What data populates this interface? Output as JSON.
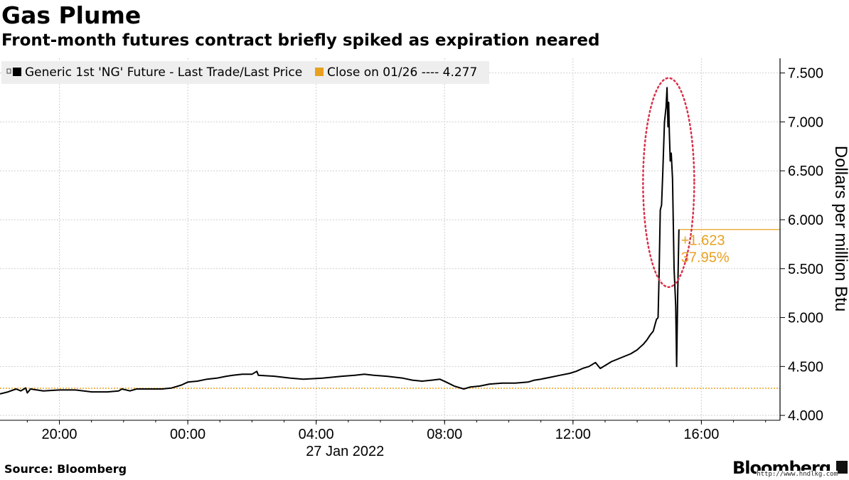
{
  "title": "Gas Plume",
  "subtitle": "Front-month futures contract briefly spiked as expiration neared",
  "source": "Source: Bloomberg",
  "brand": "Bloomberg",
  "watermark": "http://www.hndlkg.com",
  "colors": {
    "series": "#000000",
    "close": "#e8a020",
    "annotation": "#d9324a",
    "grid": "#cfcfcf"
  },
  "chart_data": {
    "type": "line",
    "title": "Gas Plume",
    "subtitle": "Front-month futures contract briefly spiked as expiration neared",
    "ylabel": "Dollars per million Btu",
    "xlabel": "27 Jan 2022",
    "ylim": [
      3.95,
      7.65
    ],
    "xlim": [
      -5.85,
      18.45
    ],
    "grid": true,
    "legend_position": "top-left",
    "x_ticks": [
      {
        "x": -4,
        "label": "20:00"
      },
      {
        "x": 0,
        "label": "00:00"
      },
      {
        "x": 4,
        "label": "04:00"
      },
      {
        "x": 8,
        "label": "08:00"
      },
      {
        "x": 12,
        "label": "12:00"
      },
      {
        "x": 16,
        "label": "16:00"
      }
    ],
    "y_ticks": [
      {
        "y": 4.0,
        "label": "4.000"
      },
      {
        "y": 4.5,
        "label": "4.500"
      },
      {
        "y": 5.0,
        "label": "5.000"
      },
      {
        "y": 5.5,
        "label": "5.500"
      },
      {
        "y": 6.0,
        "label": "6.000"
      },
      {
        "y": 6.5,
        "label": "6.500"
      },
      {
        "y": 7.0,
        "label": "7.000"
      },
      {
        "y": 7.5,
        "label": "7.500"
      }
    ],
    "legend": [
      {
        "label": "Generic 1st 'NG' Future - Last Trade/Last Price",
        "color": "#000000"
      },
      {
        "label": "Close on 01/26 ---- 4.277",
        "color": "#e8a020"
      }
    ],
    "close_level": 4.277,
    "current_level": 5.9,
    "annotation": {
      "change": "+1.623",
      "percent": "37.95%"
    },
    "series": [
      {
        "name": "Generic 1st 'NG' Future - Last Trade/Last Price",
        "points": [
          [
            -5.85,
            4.22
          ],
          [
            -5.6,
            4.24
          ],
          [
            -5.35,
            4.27
          ],
          [
            -5.2,
            4.25
          ],
          [
            -5.05,
            4.28
          ],
          [
            -5.0,
            4.23
          ],
          [
            -4.9,
            4.27
          ],
          [
            -4.5,
            4.25
          ],
          [
            -4.0,
            4.26
          ],
          [
            -3.5,
            4.26
          ],
          [
            -3.0,
            4.24
          ],
          [
            -2.5,
            4.24
          ],
          [
            -2.15,
            4.25
          ],
          [
            -2.05,
            4.27
          ],
          [
            -1.8,
            4.25
          ],
          [
            -1.6,
            4.27
          ],
          [
            -1.2,
            4.27
          ],
          [
            -0.8,
            4.27
          ],
          [
            -0.5,
            4.28
          ],
          [
            -0.2,
            4.31
          ],
          [
            0.0,
            4.34
          ],
          [
            0.3,
            4.35
          ],
          [
            0.6,
            4.37
          ],
          [
            0.9,
            4.38
          ],
          [
            1.2,
            4.4
          ],
          [
            1.4,
            4.41
          ],
          [
            1.7,
            4.42
          ],
          [
            2.0,
            4.42
          ],
          [
            2.15,
            4.45
          ],
          [
            2.2,
            4.41
          ],
          [
            2.7,
            4.4
          ],
          [
            3.2,
            4.38
          ],
          [
            3.6,
            4.37
          ],
          [
            4.2,
            4.38
          ],
          [
            4.8,
            4.4
          ],
          [
            5.2,
            4.41
          ],
          [
            5.5,
            4.42
          ],
          [
            5.8,
            4.41
          ],
          [
            6.2,
            4.4
          ],
          [
            6.7,
            4.38
          ],
          [
            7.0,
            4.36
          ],
          [
            7.3,
            4.35
          ],
          [
            7.6,
            4.36
          ],
          [
            7.85,
            4.37
          ],
          [
            8.05,
            4.34
          ],
          [
            8.3,
            4.3
          ],
          [
            8.6,
            4.27
          ],
          [
            8.8,
            4.29
          ],
          [
            9.1,
            4.3
          ],
          [
            9.4,
            4.32
          ],
          [
            9.8,
            4.33
          ],
          [
            10.2,
            4.33
          ],
          [
            10.6,
            4.34
          ],
          [
            10.8,
            4.36
          ],
          [
            11.0,
            4.37
          ],
          [
            11.3,
            4.39
          ],
          [
            11.6,
            4.41
          ],
          [
            11.9,
            4.43
          ],
          [
            12.1,
            4.45
          ],
          [
            12.3,
            4.48
          ],
          [
            12.5,
            4.5
          ],
          [
            12.7,
            4.54
          ],
          [
            12.85,
            4.48
          ],
          [
            13.0,
            4.51
          ],
          [
            13.2,
            4.55
          ],
          [
            13.5,
            4.59
          ],
          [
            13.8,
            4.63
          ],
          [
            14.0,
            4.67
          ],
          [
            14.1,
            4.7
          ],
          [
            14.2,
            4.73
          ],
          [
            14.3,
            4.77
          ],
          [
            14.4,
            4.82
          ],
          [
            14.5,
            4.86
          ],
          [
            14.55,
            4.92
          ],
          [
            14.6,
            4.98
          ],
          [
            14.65,
            5.0
          ],
          [
            14.68,
            5.4
          ],
          [
            14.72,
            6.1
          ],
          [
            14.76,
            6.15
          ],
          [
            14.8,
            6.5
          ],
          [
            14.85,
            7.0
          ],
          [
            14.9,
            7.15
          ],
          [
            14.93,
            7.35
          ],
          [
            14.96,
            6.95
          ],
          [
            14.98,
            7.2
          ],
          [
            15.0,
            6.9
          ],
          [
            15.03,
            6.6
          ],
          [
            15.06,
            6.68
          ],
          [
            15.1,
            6.42
          ],
          [
            15.15,
            5.5
          ],
          [
            15.2,
            5.12
          ],
          [
            15.23,
            4.5
          ],
          [
            15.26,
            5.2
          ],
          [
            15.3,
            5.9
          ]
        ]
      }
    ]
  }
}
